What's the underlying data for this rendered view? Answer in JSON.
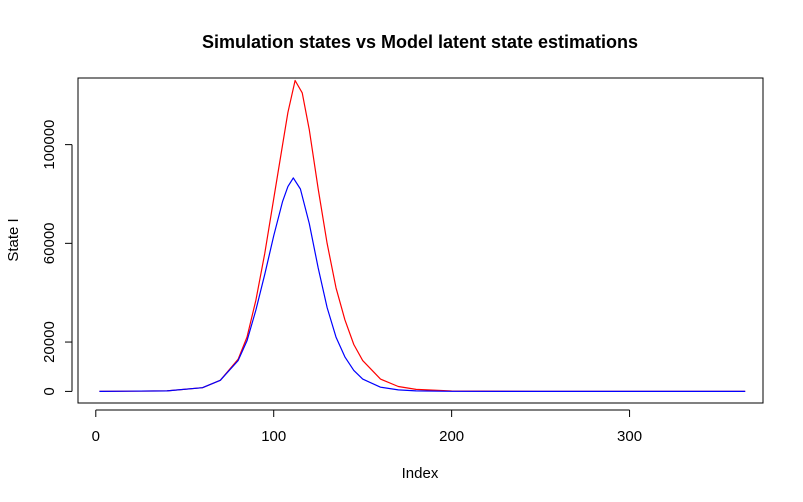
{
  "chart_data": {
    "type": "line",
    "title": "Simulation states vs Model latent state estimations",
    "xlabel": "Index",
    "ylabel": "State I",
    "xlim": [
      -10,
      375
    ],
    "ylim": [
      -4700,
      127000
    ],
    "x_ticks": [
      0,
      100,
      200,
      300
    ],
    "y_ticks": [
      0,
      20000,
      60000,
      100000
    ],
    "x_tick_labels": [
      "0",
      "100",
      "200",
      "300"
    ],
    "y_tick_labels": [
      "0",
      "20000",
      "60000",
      "100000"
    ],
    "grid": false,
    "legend": "none",
    "series": [
      {
        "color": "#ff0000",
        "x": [
          2,
          40,
          60,
          70,
          80,
          85,
          90,
          95,
          100,
          105,
          108,
          112,
          116,
          120,
          125,
          130,
          135,
          140,
          145,
          150,
          160,
          170,
          180,
          200,
          250,
          300,
          365
        ],
        "y": [
          0,
          200,
          1500,
          4500,
          13000,
          22000,
          37000,
          56000,
          78000,
          100000,
          113000,
          126000,
          121000,
          106000,
          82000,
          60000,
          42000,
          29000,
          19000,
          12500,
          5000,
          2000,
          800,
          150,
          0,
          0,
          0
        ]
      },
      {
        "color": "#0000ff",
        "x": [
          2,
          40,
          60,
          70,
          80,
          85,
          90,
          95,
          100,
          105,
          108,
          111,
          115,
          120,
          125,
          130,
          135,
          140,
          145,
          150,
          160,
          170,
          180,
          200,
          250,
          300,
          365
        ],
        "y": [
          0,
          200,
          1500,
          4500,
          12500,
          20500,
          33000,
          47500,
          63000,
          77000,
          83000,
          86500,
          82000,
          68000,
          50000,
          34000,
          22000,
          14000,
          8500,
          5000,
          1700,
          600,
          200,
          50,
          0,
          0,
          0
        ]
      }
    ]
  }
}
